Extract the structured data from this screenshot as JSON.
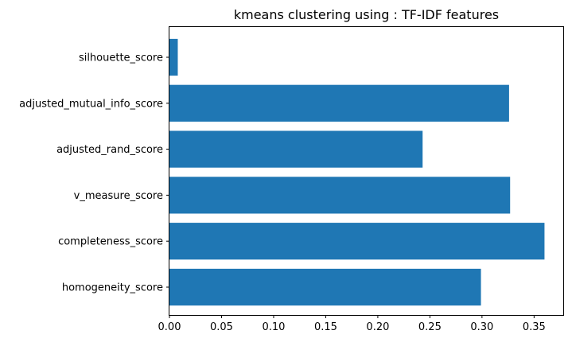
{
  "chart_data": {
    "type": "bar",
    "orientation": "horizontal",
    "title": "kmeans clustering using : TF-IDF features",
    "xlabel": "",
    "ylabel": "",
    "categories": [
      "homogeneity_score",
      "completeness_score",
      "v_measure_score",
      "adjusted_rand_score",
      "adjusted_mutual_info_score",
      "silhouette_score"
    ],
    "values": [
      0.299,
      0.36,
      0.327,
      0.243,
      0.326,
      0.008
    ],
    "xlim": [
      0,
      0.378
    ],
    "xticks": [
      "0.00",
      "0.05",
      "0.10",
      "0.15",
      "0.20",
      "0.25",
      "0.30",
      "0.35"
    ],
    "bar_color": "#1f77b4",
    "grid": false,
    "legend": "none"
  }
}
